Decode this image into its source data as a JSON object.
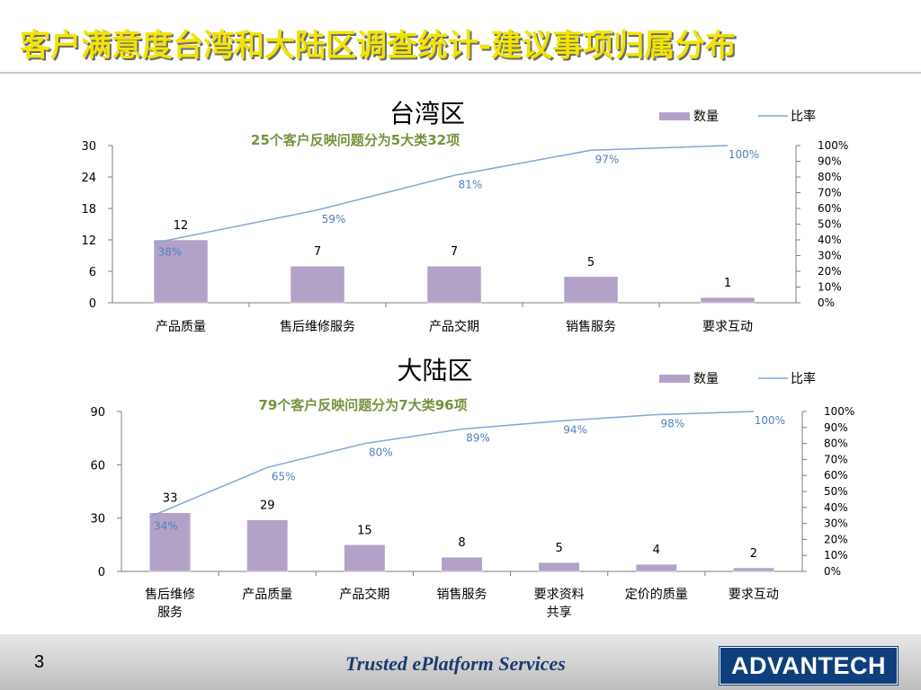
{
  "slide": {
    "title": "客户满意度台湾和大陆区调查统计-建议事项归属分布",
    "page_number": "3",
    "tagline": "Trusted ePlatform Services",
    "logo_text": "ADVANTECH"
  },
  "colors": {
    "bar": "#b3a2c7",
    "line": "#7fa8d9",
    "subtitle": "#77933c",
    "title": "#f2e400"
  },
  "chart_data": [
    {
      "type": "bar",
      "title": "台湾区",
      "subtitle": "25个客户反映问题分为5大类32项",
      "legend": [
        "数量",
        "比率"
      ],
      "legend_position": "top-right",
      "categories": [
        [
          "产品质量"
        ],
        [
          "售后维修服务"
        ],
        [
          "产品交期"
        ],
        [
          "销售服务"
        ],
        [
          "要求互动"
        ]
      ],
      "series": [
        {
          "name": "数量",
          "type": "bar",
          "axis": "left",
          "values": [
            12,
            7,
            7,
            5,
            1
          ],
          "labels": [
            "12",
            "7",
            "7",
            "5",
            "1"
          ]
        },
        {
          "name": "比率",
          "type": "line",
          "axis": "right",
          "values": [
            38,
            59,
            81,
            97,
            100
          ],
          "labels": [
            "38%",
            "59%",
            "81%",
            "97%",
            "100%"
          ]
        }
      ],
      "y_left": {
        "min": 0,
        "max": 30,
        "ticks": [
          "0",
          "6",
          "12",
          "18",
          "24",
          "30"
        ]
      },
      "y_right": {
        "min": 0,
        "max": 100,
        "ticks": [
          "0%",
          "10%",
          "20%",
          "30%",
          "40%",
          "50%",
          "60%",
          "70%",
          "80%",
          "90%",
          "100%"
        ]
      },
      "grid": false
    },
    {
      "type": "bar",
      "title": "大陆区",
      "subtitle": "79个客户反映问题分为7大类96项",
      "legend": [
        "数量",
        "比率"
      ],
      "legend_position": "top-right",
      "categories": [
        [
          "售后维修",
          "服务"
        ],
        [
          "产品质量"
        ],
        [
          "产品交期"
        ],
        [
          "销售服务"
        ],
        [
          "要求资料",
          "共享"
        ],
        [
          "定价的质量"
        ],
        [
          "要求互动"
        ]
      ],
      "series": [
        {
          "name": "数量",
          "type": "bar",
          "axis": "left",
          "values": [
            33,
            29,
            15,
            8,
            5,
            4,
            2
          ],
          "labels": [
            "33",
            "29",
            "15",
            "8",
            "5",
            "4",
            "2"
          ]
        },
        {
          "name": "比率",
          "type": "line",
          "axis": "right",
          "values": [
            34,
            65,
            80,
            89,
            94,
            98,
            100
          ],
          "labels": [
            "34%",
            "65%",
            "80%",
            "89%",
            "94%",
            "98%",
            "100%"
          ]
        }
      ],
      "y_left": {
        "min": 0,
        "max": 90,
        "ticks": [
          "0",
          "30",
          "60",
          "90"
        ]
      },
      "y_right": {
        "min": 0,
        "max": 100,
        "ticks": [
          "0%",
          "10%",
          "20%",
          "30%",
          "40%",
          "50%",
          "60%",
          "70%",
          "80%",
          "90%",
          "100%"
        ]
      },
      "grid": false
    }
  ]
}
